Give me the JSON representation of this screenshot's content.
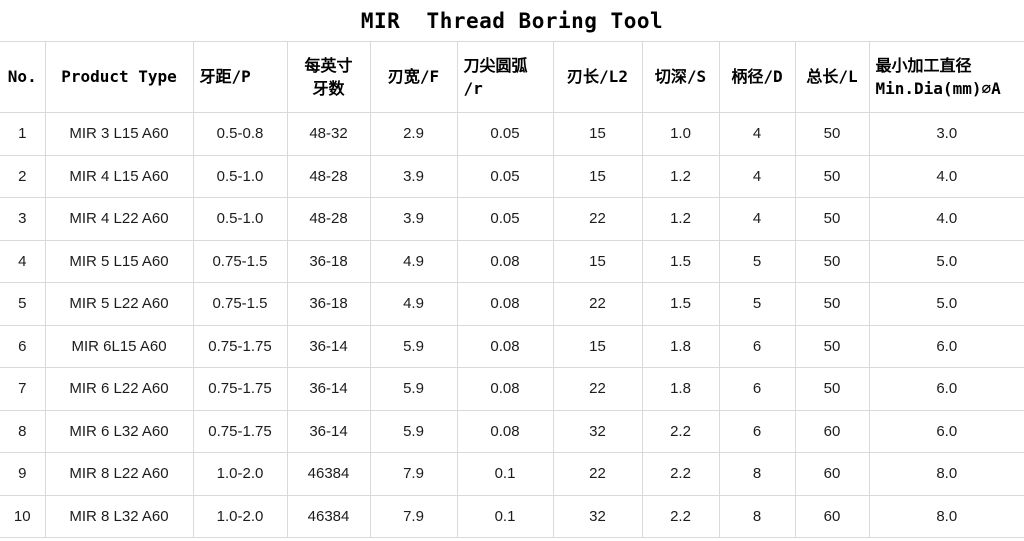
{
  "title": "MIR  Thread Boring Tool",
  "table": {
    "columns": [
      {
        "label": "No.",
        "align": "center"
      },
      {
        "label": "Product Type",
        "align": "center"
      },
      {
        "label": "牙距/P",
        "align": "left"
      },
      {
        "label": "每英寸\n牙数",
        "align": "center"
      },
      {
        "label": "刃宽/F",
        "align": "center"
      },
      {
        "label": "刀尖圆弧\n/r",
        "align": "left"
      },
      {
        "label": "刃长/L2",
        "align": "center"
      },
      {
        "label": "切深/S",
        "align": "center"
      },
      {
        "label": "柄径/D",
        "align": "center"
      },
      {
        "label": "总长/L",
        "align": "center"
      },
      {
        "label": "最小加工直径\nMin.Dia(mm)∅A",
        "align": "left"
      }
    ],
    "rows": [
      [
        "1",
        "MIR 3 L15 A60",
        "0.5-0.8",
        "48-32",
        "2.9",
        "0.05",
        "15",
        "1.0",
        "4",
        "50",
        "3.0"
      ],
      [
        "2",
        "MIR 4 L15 A60",
        "0.5-1.0",
        "48-28",
        "3.9",
        "0.05",
        "15",
        "1.2",
        "4",
        "50",
        "4.0"
      ],
      [
        "3",
        "MIR 4 L22 A60",
        "0.5-1.0",
        "48-28",
        "3.9",
        "0.05",
        "22",
        "1.2",
        "4",
        "50",
        "4.0"
      ],
      [
        "4",
        "MIR 5 L15 A60",
        "0.75-1.5",
        "36-18",
        "4.9",
        "0.08",
        "15",
        "1.5",
        "5",
        "50",
        "5.0"
      ],
      [
        "5",
        "MIR 5 L22 A60",
        "0.75-1.5",
        "36-18",
        "4.9",
        "0.08",
        "22",
        "1.5",
        "5",
        "50",
        "5.0"
      ],
      [
        "6",
        "MIR 6L15 A60",
        "0.75-1.75",
        "36-14",
        "5.9",
        "0.08",
        "15",
        "1.8",
        "6",
        "50",
        "6.0"
      ],
      [
        "7",
        "MIR 6 L22 A60",
        "0.75-1.75",
        "36-14",
        "5.9",
        "0.08",
        "22",
        "1.8",
        "6",
        "50",
        "6.0"
      ],
      [
        "8",
        "MIR 6 L32 A60",
        "0.75-1.75",
        "36-14",
        "5.9",
        "0.08",
        "32",
        "2.2",
        "6",
        "60",
        "6.0"
      ],
      [
        "9",
        "MIR 8 L22 A60",
        "1.0-2.0",
        "46384",
        "7.9",
        "0.1",
        "22",
        "2.2",
        "8",
        "60",
        "8.0"
      ],
      [
        "10",
        "MIR 8 L32 A60",
        "1.0-2.0",
        "46384",
        "7.9",
        "0.1",
        "32",
        "2.2",
        "8",
        "60",
        "8.0"
      ]
    ]
  },
  "colors": {
    "grid": "#d9d9d9",
    "header_text": "#000000",
    "data_text": "#1c1c1c",
    "background": "#ffffff"
  }
}
